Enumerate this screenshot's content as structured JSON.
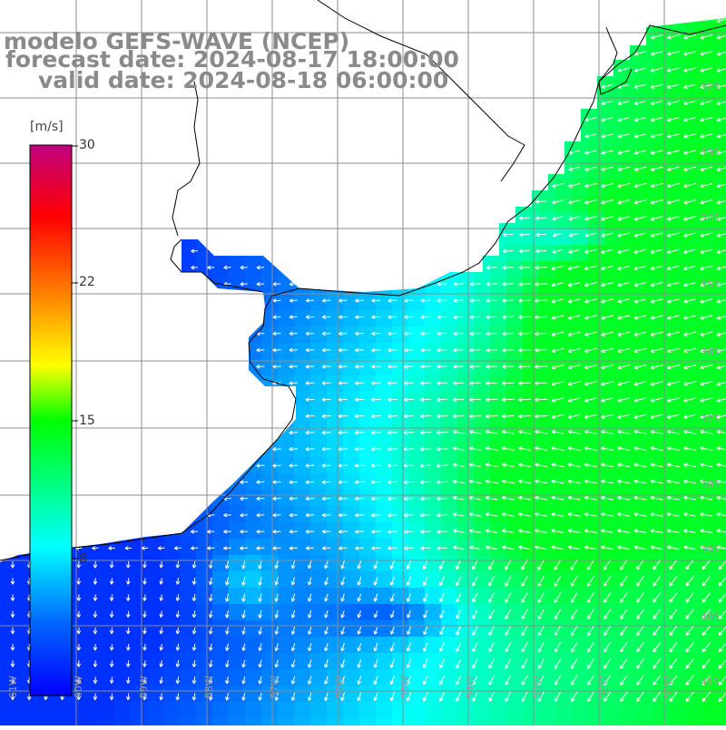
{
  "title": {
    "model": "modelo GEFS-WAVE (NCEP)",
    "forecast": "forecast date: 2024-08-17 18:00:00",
    "valid": "valid date: 2024-08-18 06:00:00"
  },
  "colorbar": {
    "unit": "[m/s]",
    "ticks": [
      {
        "label": "30",
        "value": 30
      },
      {
        "label": "22",
        "value": 22
      },
      {
        "label": "15",
        "value": 15
      },
      {
        "label": "8",
        "value": 8
      }
    ],
    "min": 0,
    "max": 30,
    "colors": [
      "#0000ff",
      "#0080ff",
      "#00ffff",
      "#00ff00",
      "#ffff00",
      "#ff8000",
      "#ff0000",
      "#c0007f"
    ]
  },
  "map": {
    "lon_range": [
      -61,
      -50
    ],
    "lat_range": [
      -41,
      -27
    ],
    "lat_labels": [
      "33S",
      "34S",
      "35S",
      "36S",
      "37S",
      "38S",
      "39S",
      "40S",
      "41S",
      "32S"
    ],
    "lon_labels": [
      "61W",
      "60W",
      "59W",
      "58W",
      "57W",
      "56W",
      "55W",
      "54W",
      "53W",
      "52W",
      "51W"
    ],
    "land_color": "#ffffff",
    "grid_color": "#8c8c8c",
    "coast_color": "#000000",
    "arrow_color": "#ffffff"
  }
}
